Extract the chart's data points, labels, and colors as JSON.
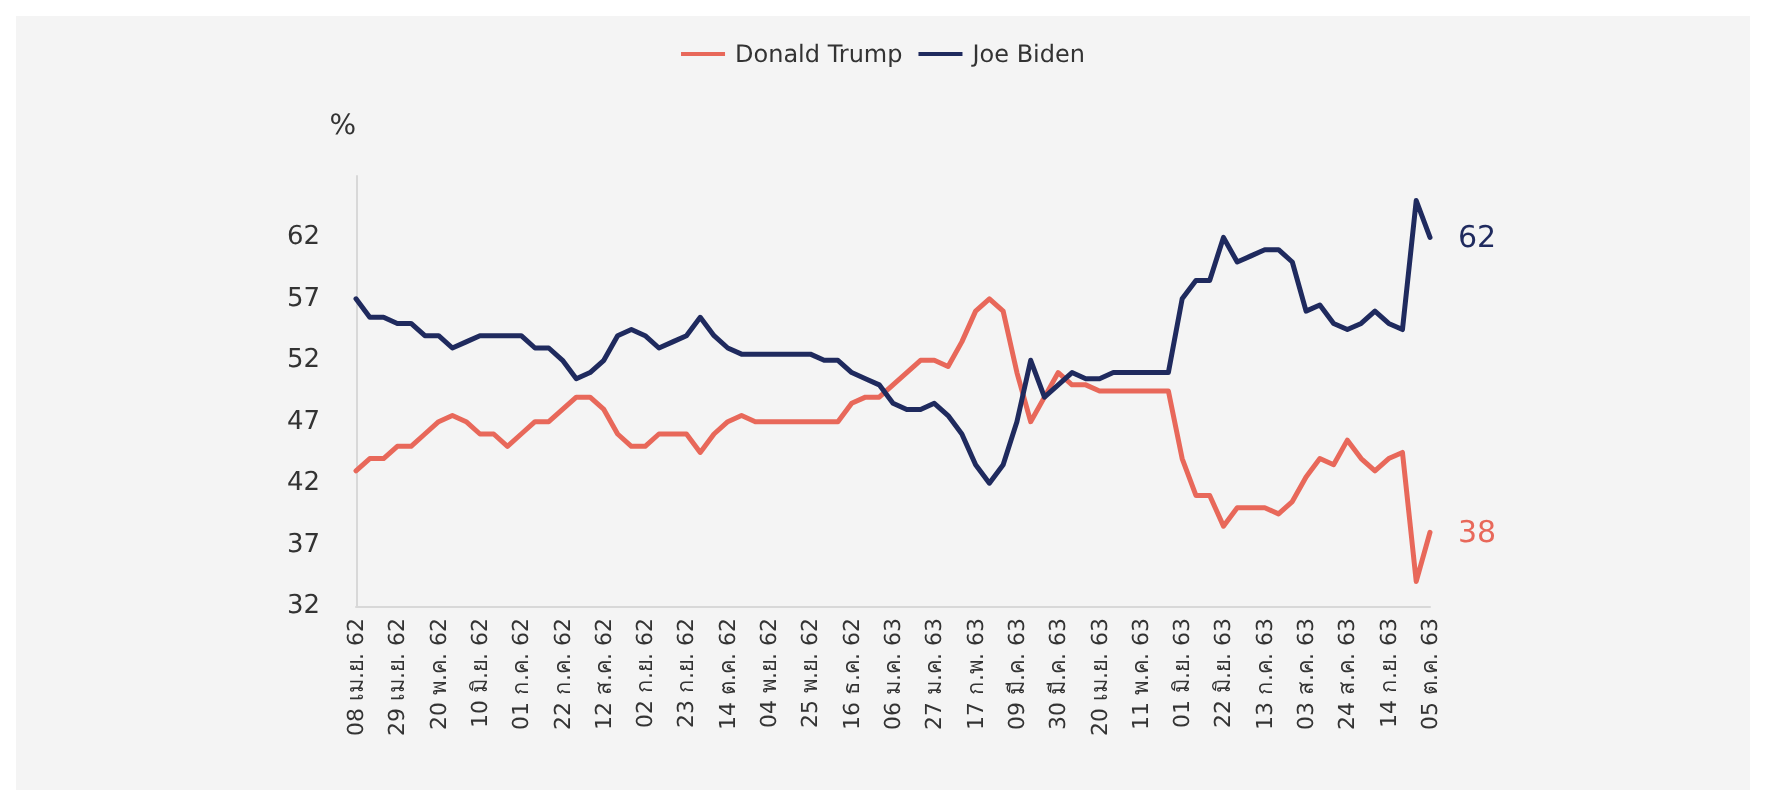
{
  "chart_data": {
    "type": "line",
    "ylabel": "%",
    "categories": [
      "08 เม.ย. 62",
      null,
      null,
      "29 เม.ย. 62",
      null,
      null,
      "20 พ.ค. 62",
      null,
      null,
      "10 มิ.ย. 62",
      null,
      null,
      "01 ก.ค. 62",
      null,
      null,
      "22 ก.ค. 62",
      null,
      null,
      "12 ส.ค. 62",
      null,
      null,
      "02 ก.ย. 62",
      null,
      null,
      "23 ก.ย. 62",
      null,
      null,
      "14 ต.ค. 62",
      null,
      null,
      "04 พ.ย. 62",
      null,
      null,
      "25 พ.ย. 62",
      null,
      null,
      "16 ธ.ค. 62",
      null,
      null,
      "06 ม.ค. 63",
      null,
      null,
      "27 ม.ค. 63",
      null,
      null,
      "17 ก.พ. 63",
      null,
      null,
      "09 มี.ค. 63",
      null,
      null,
      "30 มี.ค. 63",
      null,
      null,
      "20 เม.ย. 63",
      null,
      null,
      "11 พ.ค. 63",
      null,
      null,
      "01 มิ.ย. 63",
      null,
      null,
      "22 มิ.ย. 63",
      null,
      null,
      "13 ก.ค. 63",
      null,
      null,
      "03 ส.ค. 63",
      null,
      null,
      "24 ส.ค. 63",
      null,
      null,
      "14 ก.ย. 63",
      null,
      null,
      "05 ต.ค. 63"
    ],
    "series": [
      {
        "name": "Donald Trump",
        "color": "#e8685a",
        "values": [
          43,
          44,
          44,
          45,
          45,
          46,
          47,
          47.5,
          47,
          46,
          46,
          45,
          46,
          47,
          47,
          48,
          49,
          49,
          48,
          46,
          45,
          45,
          46,
          46,
          46,
          44.5,
          46,
          47,
          47.5,
          47,
          47,
          47,
          47,
          47,
          47,
          47,
          48.5,
          49,
          49,
          50,
          51,
          52,
          52,
          51.5,
          53.5,
          56,
          57,
          56,
          51,
          47,
          49,
          51,
          50,
          50,
          49.5,
          49.5,
          49.5,
          49.5,
          49.5,
          49.5,
          44,
          41,
          41,
          38.5,
          40,
          40,
          40,
          39.5,
          40.5,
          42.5,
          44,
          43.5,
          45.5,
          44,
          43,
          44,
          44.5,
          34,
          38
        ],
        "value_labels": [
          null,
          null,
          null,
          null,
          null,
          null,
          null,
          null,
          null,
          null,
          null,
          null,
          null,
          null,
          null,
          null,
          null,
          null,
          null,
          null,
          null,
          null,
          null,
          null,
          null,
          null,
          null,
          null,
          null,
          null,
          null,
          null,
          null,
          null,
          null,
          null,
          null,
          null,
          null,
          null,
          null,
          null,
          null,
          null,
          null,
          null,
          null,
          null,
          null,
          null,
          null,
          null,
          null,
          null,
          null,
          null,
          null,
          null,
          null,
          null,
          null,
          null,
          null,
          null,
          null,
          null,
          null,
          null,
          null,
          null,
          null,
          null,
          null,
          null,
          null,
          null,
          null,
          null,
          "38"
        ]
      },
      {
        "name": "Joe Biden",
        "color": "#1f2a5e",
        "values": [
          57,
          55.5,
          55.5,
          55,
          55,
          54,
          54,
          53,
          53.5,
          54,
          54,
          54,
          54,
          53,
          53,
          52,
          50.5,
          51,
          52,
          54,
          54.5,
          54,
          53,
          53.5,
          54,
          55.5,
          54,
          53,
          52.5,
          52.5,
          52.5,
          52.5,
          52.5,
          52.5,
          52,
          52,
          51,
          50.5,
          50,
          48.5,
          48,
          48,
          48.5,
          47.5,
          46,
          43.5,
          42,
          43.5,
          47,
          52,
          49,
          50,
          51,
          50.5,
          50.5,
          51,
          51,
          51,
          51,
          51,
          57,
          58.5,
          58.5,
          62,
          60,
          60.5,
          61,
          61,
          60,
          56,
          56.5,
          55,
          54.5,
          55,
          56,
          55,
          54.5,
          65,
          62
        ],
        "value_labels": [
          null,
          null,
          null,
          null,
          null,
          null,
          null,
          null,
          null,
          null,
          null,
          null,
          null,
          null,
          null,
          null,
          null,
          null,
          null,
          null,
          null,
          null,
          null,
          null,
          null,
          null,
          null,
          null,
          null,
          null,
          null,
          null,
          null,
          null,
          null,
          null,
          null,
          null,
          null,
          null,
          null,
          null,
          null,
          null,
          null,
          null,
          null,
          null,
          null,
          null,
          null,
          null,
          null,
          null,
          null,
          null,
          null,
          null,
          null,
          null,
          null,
          null,
          null,
          null,
          null,
          null,
          null,
          null,
          null,
          null,
          null,
          null,
          null,
          null,
          null,
          null,
          null,
          null,
          "62"
        ]
      }
    ],
    "ylim": [
      32,
      67
    ],
    "yticks": [
      32,
      37,
      42,
      47,
      52,
      57,
      62
    ],
    "grid": false,
    "legend": "top",
    "marker": "none",
    "line_style": "solid"
  }
}
